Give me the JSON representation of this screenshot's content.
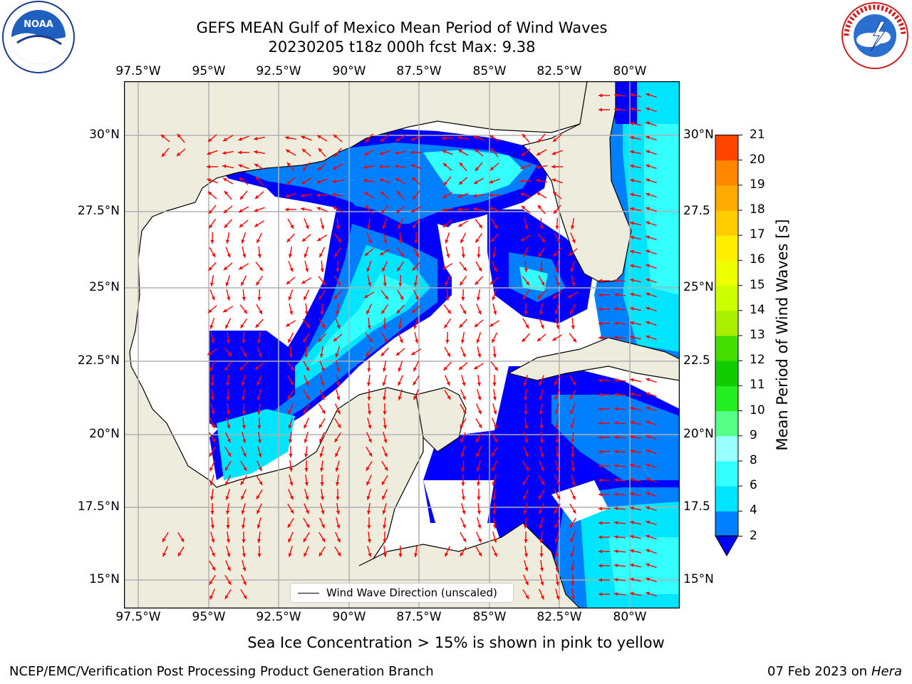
{
  "header": {
    "title_line1": "GEFS MEAN Gulf of Mexico Mean Period of Wind Waves",
    "title_line2": "20230205 t18z 000h fcst   Max: 9.38"
  },
  "logos": {
    "noaa_text": "NOAA",
    "nws_arc_text": "NATIONAL WEATHER SERVICE"
  },
  "map": {
    "lon_labels": [
      "97.5°W",
      "95°W",
      "92.5°W",
      "90°W",
      "87.5°W",
      "85°W",
      "82.5°W",
      "80°W"
    ],
    "lat_labels_left": [
      "30°N",
      "27.5°N",
      "25°N",
      "22.5°N",
      "20°N",
      "17.5°N",
      "15°N"
    ],
    "lat_labels_right": [
      "30°N",
      "27.5",
      "25°N",
      "22.5",
      "20°N",
      "17.5",
      "15°N"
    ],
    "legend_label": "Wind Wave Direction (unscaled)",
    "colors": {
      "land": "#eeecdc",
      "ocean_calm": "#ffffff",
      "gridline": "#b0b0b0",
      "arrow": "#ff0000"
    }
  },
  "colorbar": {
    "label": "Mean Period of Wind Waves [s]",
    "ticks": [
      "2",
      "4",
      "6",
      "8",
      "9",
      "10",
      "11",
      "12",
      "13",
      "14",
      "15",
      "16",
      "17",
      "18",
      "19",
      "20",
      "21"
    ],
    "colors": [
      "#0000ff",
      "#007fff",
      "#00e5ff",
      "#33ffff",
      "#99ffff",
      "#55ff88",
      "#22ee22",
      "#11cc00",
      "#44dd00",
      "#aaee00",
      "#ccff00",
      "#eeff00",
      "#ffee00",
      "#ffcc00",
      "#ffaa00",
      "#ff8800",
      "#ff4400",
      "#ff0000"
    ]
  },
  "footer": {
    "note": "Sea Ice Concentration > 15% is shown in pink to yellow",
    "credit": "NCEP/EMC/Verification Post Processing Product Generation Branch",
    "date": "07 Feb 2023 on",
    "machine": "Hera"
  }
}
